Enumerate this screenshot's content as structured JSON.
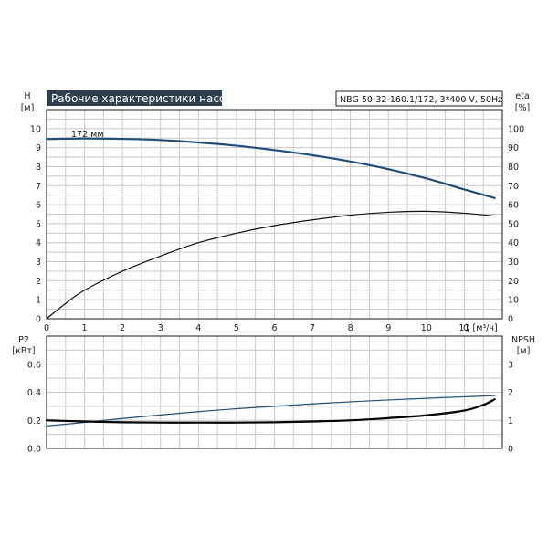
{
  "header": {
    "title": "Рабочие характеристики насоса",
    "model": "NBG 50-32-160.1/172, 3*400 V, 50Hz"
  },
  "chart_data": [
    {
      "type": "line",
      "panel": "top",
      "xlabel": "Q [м³/ч]",
      "ylabel": "H",
      "yunit": "[м]",
      "y2label": "eta",
      "y2unit": "[%]",
      "xlim": [
        0,
        12
      ],
      "xticks": [
        0,
        1,
        2,
        3,
        4,
        5,
        6,
        7,
        8,
        9,
        10,
        11
      ],
      "ylim": [
        0,
        11
      ],
      "yticks": [
        0,
        1,
        2,
        3,
        4,
        5,
        6,
        7,
        8,
        9,
        10
      ],
      "y2lim": [
        0,
        110
      ],
      "y2ticks": [
        0,
        10,
        20,
        30,
        40,
        50,
        60,
        70,
        80,
        90,
        100
      ],
      "grid": true,
      "annotation": "172 мм",
      "series": [
        {
          "key": "H",
          "axis": "left",
          "color": "#1f4e79",
          "points": [
            [
              0,
              9.45
            ],
            [
              1,
              9.48
            ],
            [
              2,
              9.46
            ],
            [
              3,
              9.4
            ],
            [
              4,
              9.27
            ],
            [
              5,
              9.1
            ],
            [
              6,
              8.87
            ],
            [
              7,
              8.6
            ],
            [
              8,
              8.27
            ],
            [
              9,
              7.87
            ],
            [
              10,
              7.38
            ],
            [
              11,
              6.8
            ],
            [
              11.8,
              6.35
            ]
          ]
        },
        {
          "key": "eta",
          "axis": "right",
          "color": "#111111",
          "points": [
            [
              0,
              0
            ],
            [
              0.5,
              8
            ],
            [
              1,
              15
            ],
            [
              2,
              25
            ],
            [
              3,
              33
            ],
            [
              4,
              40
            ],
            [
              5,
              45
            ],
            [
              6,
              49
            ],
            [
              7,
              52
            ],
            [
              8,
              54.5
            ],
            [
              9,
              56
            ],
            [
              10,
              56.5
            ],
            [
              11,
              55.5
            ],
            [
              11.8,
              54
            ]
          ]
        }
      ]
    },
    {
      "type": "line",
      "panel": "bottom",
      "ylabel": "P2",
      "yunit": "[кВт]",
      "y2label": "NPSH",
      "y2unit": "[м]",
      "xlim": [
        0,
        12
      ],
      "xticks": [
        0,
        1,
        2,
        3,
        4,
        5,
        6,
        7,
        8,
        9,
        10,
        11
      ],
      "ylim": [
        0,
        0.8
      ],
      "yticks": [
        0.0,
        0.2,
        0.4,
        0.6
      ],
      "yticklabels": [
        "0.0",
        "0.2",
        "0.4",
        "0.6"
      ],
      "y2lim": [
        0,
        4
      ],
      "y2ticks": [
        0,
        1,
        2,
        3
      ],
      "grid": true,
      "series": [
        {
          "key": "P2",
          "axis": "left",
          "color": "#1f4e79",
          "points": [
            [
              0,
              0.16
            ],
            [
              1,
              0.185
            ],
            [
              2,
              0.213
            ],
            [
              3,
              0.238
            ],
            [
              4,
              0.262
            ],
            [
              5,
              0.283
            ],
            [
              6,
              0.3
            ],
            [
              7,
              0.317
            ],
            [
              8,
              0.332
            ],
            [
              9,
              0.345
            ],
            [
              10,
              0.357
            ],
            [
              11,
              0.368
            ],
            [
              11.8,
              0.376
            ]
          ]
        },
        {
          "key": "NPSH",
          "axis": "right",
          "color": "#000000",
          "points": [
            [
              0,
              1.0
            ],
            [
              1,
              0.96
            ],
            [
              2,
              0.93
            ],
            [
              3,
              0.92
            ],
            [
              4,
              0.92
            ],
            [
              5,
              0.92
            ],
            [
              6,
              0.93
            ],
            [
              7,
              0.96
            ],
            [
              8,
              1.0
            ],
            [
              9,
              1.08
            ],
            [
              10,
              1.18
            ],
            [
              11,
              1.35
            ],
            [
              11.5,
              1.55
            ],
            [
              11.8,
              1.75
            ]
          ]
        }
      ]
    }
  ]
}
